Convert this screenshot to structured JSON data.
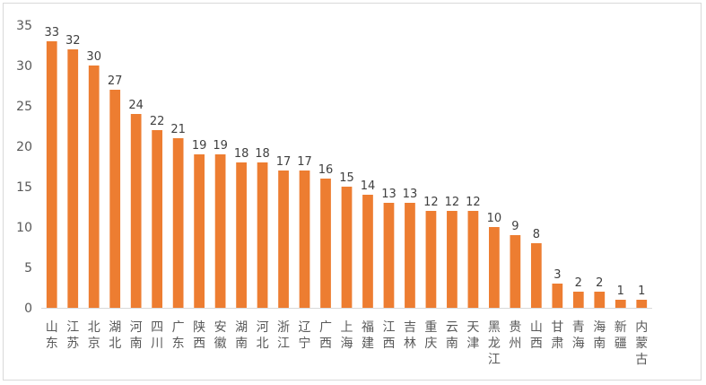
{
  "chart_data": {
    "type": "bar",
    "title": "",
    "xlabel": "",
    "ylabel": "",
    "ylim": [
      0,
      35
    ],
    "yticks": [
      0,
      5,
      10,
      15,
      20,
      25,
      30,
      35
    ],
    "grid": false,
    "legend": "none",
    "bar_color": "#ED7D31",
    "categories": [
      "山东",
      "江苏",
      "北京",
      "湖北",
      "河南",
      "四川",
      "广东",
      "陕西",
      "安徽",
      "湖南",
      "河北",
      "浙江",
      "辽宁",
      "广西",
      "上海",
      "福建",
      "江西",
      "吉林",
      "重庆",
      "云南",
      "天津",
      "黑龙江",
      "贵州",
      "山西",
      "甘肃",
      "青海",
      "海南",
      "新疆",
      "内蒙古"
    ],
    "values": [
      33,
      32,
      30,
      27,
      24,
      22,
      21,
      19,
      19,
      18,
      18,
      17,
      17,
      16,
      15,
      14,
      13,
      13,
      12,
      12,
      12,
      10,
      9,
      8,
      3,
      2,
      2,
      1,
      1
    ]
  }
}
